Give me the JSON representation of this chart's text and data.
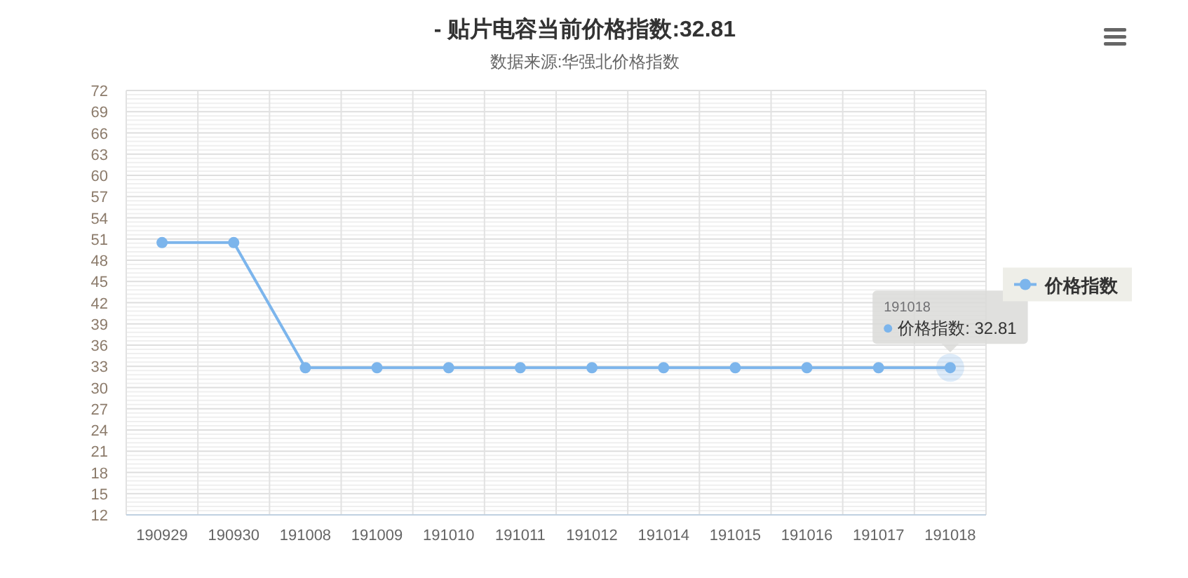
{
  "chart_data": {
    "type": "line",
    "title": "- 贴片电容当前价格指数:32.81",
    "subtitle": "数据来源:华强北价格指数",
    "categories": [
      "190929",
      "190930",
      "191008",
      "191009",
      "191010",
      "191011",
      "191012",
      "191014",
      "191015",
      "191016",
      "191017",
      "191018"
    ],
    "series": [
      {
        "name": "价格指数",
        "color": "#7cb5ec",
        "values": [
          50.5,
          50.5,
          32.8,
          32.8,
          32.8,
          32.8,
          32.8,
          32.8,
          32.8,
          32.8,
          32.8,
          32.81
        ]
      }
    ],
    "ylim": [
      12,
      72
    ],
    "yticks": [
      12,
      15,
      18,
      21,
      24,
      27,
      30,
      33,
      36,
      39,
      42,
      45,
      48,
      51,
      54,
      57,
      60,
      63,
      66,
      69,
      72
    ],
    "grid": true,
    "legend": "right",
    "marker": "circle",
    "annotations": [
      "191018",
      {
        "text": "价格指数: 32.81",
        "x": "191018",
        "y": 32.81
      }
    ]
  }
}
